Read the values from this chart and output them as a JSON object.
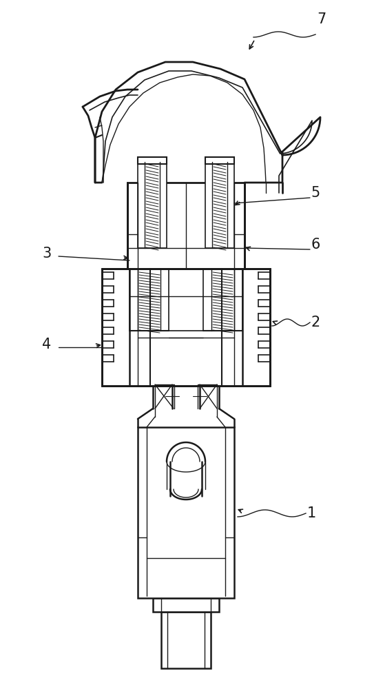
{
  "background_color": "#ffffff",
  "line_color": "#1a1a1a",
  "figsize": [
    5.43,
    10.0
  ],
  "dpi": 100
}
